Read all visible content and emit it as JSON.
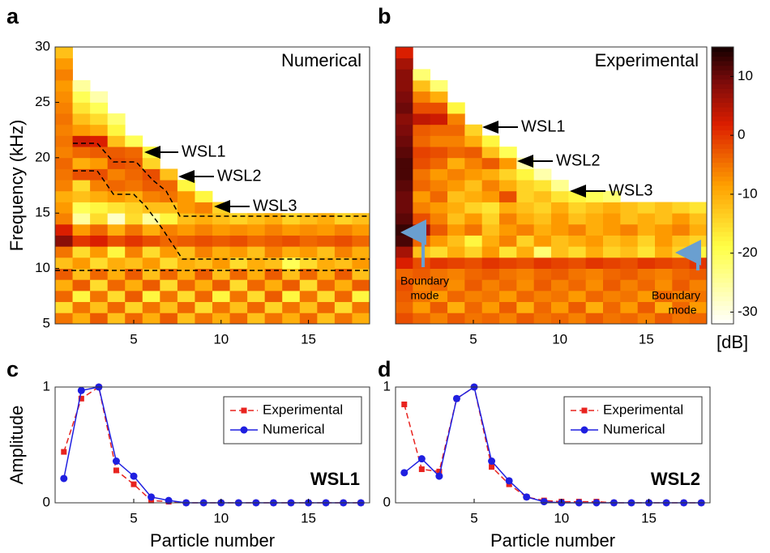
{
  "chart_data": [
    {
      "type": "heatmap",
      "panel_label": "a",
      "title": "Numerical",
      "ylabel": "Frequency (kHz)",
      "annotations": [
        "WSL1",
        "WSL2",
        "WSL3"
      ],
      "x": [
        1,
        2,
        3,
        4,
        5,
        6,
        7,
        8,
        9,
        10,
        11,
        12,
        13,
        14,
        15,
        16,
        17,
        18
      ],
      "ybins": [
        5,
        6,
        7,
        8,
        9,
        10,
        11,
        12,
        13,
        14,
        15,
        16,
        17,
        18,
        19,
        20,
        21,
        22,
        23,
        24,
        25,
        26,
        27,
        28,
        29,
        30
      ],
      "xlim": [
        0.5,
        18.5
      ],
      "xticks": [
        5,
        10,
        15
      ],
      "ylim": [
        5,
        30
      ],
      "yticks": [
        5,
        10,
        15,
        20,
        25,
        30
      ],
      "values": [
        [
          -5,
          -10,
          -3,
          -12,
          -4,
          -10,
          -3,
          -12,
          -5,
          -10,
          -4,
          -12,
          -5,
          -10,
          -4,
          -12,
          -5,
          -10
        ],
        [
          -15,
          -5,
          -12,
          -4,
          -14,
          -5,
          -12,
          -4,
          -15,
          -5,
          -12,
          -4,
          -14,
          -5,
          -12,
          -4,
          -15,
          -5
        ],
        [
          -4,
          -18,
          -5,
          -15,
          -3,
          -18,
          -5,
          -15,
          -4,
          -18,
          -5,
          -15,
          -3,
          -18,
          -5,
          -15,
          -4,
          -18
        ],
        [
          -10,
          -3,
          -15,
          -4,
          -10,
          -3,
          -15,
          -4,
          -10,
          -3,
          -15,
          -4,
          -10,
          -3,
          -15,
          -4,
          -10,
          -3
        ],
        [
          -3,
          -12,
          -4,
          -10,
          -3,
          -12,
          -4,
          -10,
          -3,
          -12,
          -4,
          -10,
          -3,
          -12,
          -4,
          -10,
          -3,
          -12
        ],
        [
          -12,
          -8,
          -15,
          -10,
          -12,
          -8,
          -15,
          -10,
          -12,
          -8,
          -15,
          -10,
          -12,
          -20,
          -15,
          -10,
          -12,
          -8
        ],
        [
          -5,
          -15,
          -8,
          -18,
          -6,
          -15,
          -8,
          -12,
          -6,
          -10,
          -8,
          -12,
          -6,
          -10,
          -8,
          -12,
          -6,
          -10
        ],
        [
          8,
          0,
          2,
          -2,
          0,
          -2,
          -4,
          -3,
          -2,
          -3,
          -2,
          -4,
          -3,
          -2,
          -4,
          -3,
          -2,
          -4
        ],
        [
          2,
          -8,
          -4,
          -10,
          -5,
          -10,
          -6,
          -8,
          -6,
          -8,
          -7,
          -8,
          -6,
          -8,
          -7,
          -8,
          -6,
          -8
        ],
        [
          -6,
          -25,
          -15,
          -28,
          -15,
          -25,
          -18,
          -12,
          -10,
          -12,
          -14,
          -12,
          -10,
          -14,
          -12,
          -10,
          -14,
          -12
        ],
        [
          -8,
          -20,
          -18,
          -16,
          -14,
          -12,
          -12,
          -8,
          -6,
          -14,
          null,
          null,
          null,
          null,
          null,
          null,
          null,
          null
        ],
        [
          -10,
          -12,
          -10,
          -8,
          -10,
          -6,
          -5,
          -8,
          -18,
          null,
          null,
          null,
          null,
          null,
          null,
          null,
          null,
          null
        ],
        [
          -6,
          -15,
          -6,
          -4,
          -5,
          -3,
          -4,
          -18,
          null,
          null,
          null,
          null,
          null,
          null,
          null,
          null,
          null,
          null
        ],
        [
          -5,
          -2,
          -2,
          -6,
          -4,
          -2,
          -12,
          null,
          null,
          null,
          null,
          null,
          null,
          null,
          null,
          null,
          null,
          null
        ],
        [
          -4,
          -10,
          -8,
          -2,
          -3,
          -14,
          null,
          null,
          null,
          null,
          null,
          null,
          null,
          null,
          null,
          null,
          null,
          null
        ],
        [
          -6,
          -4,
          -3,
          -3,
          -4,
          -18,
          null,
          null,
          null,
          null,
          null,
          null,
          null,
          null,
          null,
          null,
          null,
          null
        ],
        [
          -5,
          3,
          2,
          -12,
          -20,
          null,
          null,
          null,
          null,
          null,
          null,
          null,
          null,
          null,
          null,
          null,
          null,
          null
        ],
        [
          -6,
          -8,
          -10,
          -18,
          null,
          null,
          null,
          null,
          null,
          null,
          null,
          null,
          null,
          null,
          null,
          null,
          null,
          null
        ],
        [
          -5,
          -12,
          -15,
          -22,
          null,
          null,
          null,
          null,
          null,
          null,
          null,
          null,
          null,
          null,
          null,
          null,
          null,
          null
        ],
        [
          -6,
          -16,
          -20,
          null,
          null,
          null,
          null,
          null,
          null,
          null,
          null,
          null,
          null,
          null,
          null,
          null,
          null,
          null
        ],
        [
          -7,
          -20,
          -26,
          null,
          null,
          null,
          null,
          null,
          null,
          null,
          null,
          null,
          null,
          null,
          null,
          null,
          null,
          null
        ],
        [
          -8,
          -25,
          null,
          null,
          null,
          null,
          null,
          null,
          null,
          null,
          null,
          null,
          null,
          null,
          null,
          null,
          null,
          null
        ],
        [
          -6,
          null,
          null,
          null,
          null,
          null,
          null,
          null,
          null,
          null,
          null,
          null,
          null,
          null,
          null,
          null,
          null,
          null
        ],
        [
          -8,
          null,
          null,
          null,
          null,
          null,
          null,
          null,
          null,
          null,
          null,
          null,
          null,
          null,
          null,
          null,
          null,
          null
        ],
        [
          -12,
          null,
          null,
          null,
          null,
          null,
          null,
          null,
          null,
          null,
          null,
          null,
          null,
          null,
          null,
          null,
          null,
          null
        ]
      ]
    },
    {
      "type": "heatmap",
      "panel_label": "b",
      "title": "Experimental",
      "annotations": [
        "WSL1",
        "WSL2",
        "WSL3",
        "Boundary",
        "mode",
        "Boundary",
        "mode"
      ],
      "colorbar": {
        "label": "[dB]",
        "clim": [
          -32,
          15
        ],
        "ticks": [
          10,
          0,
          -10,
          -20,
          -30
        ]
      },
      "x": [
        1,
        2,
        3,
        4,
        5,
        6,
        7,
        8,
        9,
        10,
        11,
        12,
        13,
        14,
        15,
        16,
        17,
        18
      ],
      "ybins": [
        5,
        6,
        7,
        8,
        9,
        10,
        11,
        12,
        13,
        14,
        15,
        16,
        17,
        18,
        19,
        20,
        21,
        22,
        23,
        24,
        25,
        26,
        27,
        28,
        29,
        30
      ],
      "xlim": [
        0.5,
        18.5
      ],
      "xticks": [
        5,
        10,
        15
      ],
      "ylim": [
        5,
        30
      ],
      "values": [
        [
          -2,
          -4,
          -6,
          -3,
          -5,
          -4,
          -6,
          -3,
          -5,
          -4,
          -6,
          -3,
          -5,
          -4,
          -6,
          -3,
          -5,
          -4
        ],
        [
          -4,
          -8,
          -3,
          -10,
          -4,
          -8,
          -3,
          -10,
          -4,
          -8,
          -3,
          -10,
          -4,
          -8,
          -3,
          -10,
          -4,
          -8
        ],
        [
          -3,
          -5,
          -8,
          -4,
          -6,
          -5,
          -8,
          -4,
          -6,
          -5,
          -8,
          -4,
          -6,
          -5,
          -8,
          -4,
          -6,
          -5
        ],
        [
          -2,
          -6,
          -4,
          -7,
          -3,
          -6,
          -4,
          -7,
          -3,
          -6,
          -4,
          -7,
          -3,
          -6,
          -4,
          -7,
          -3,
          -6
        ],
        [
          -4,
          -3,
          -5,
          -6,
          -4,
          -3,
          -5,
          -6,
          -4,
          -3,
          -5,
          -6,
          -4,
          -3,
          -5,
          -6,
          -4,
          -3
        ],
        [
          2,
          -2,
          0,
          -1,
          -2,
          0,
          -1,
          -2,
          0,
          -1,
          -2,
          0,
          -1,
          -2,
          0,
          -1,
          -2,
          0
        ],
        [
          6,
          -12,
          -15,
          -10,
          -14,
          -8,
          -16,
          -10,
          -22,
          -12,
          -15,
          -10,
          -14,
          -12,
          -16,
          -10,
          -14,
          -18
        ],
        [
          12,
          -4,
          -8,
          -12,
          -18,
          -10,
          -6,
          -14,
          -8,
          -12,
          -10,
          -8,
          -12,
          -10,
          -14,
          -8,
          -12,
          -14
        ],
        [
          13,
          6,
          -3,
          -8,
          -5,
          -12,
          -8,
          -6,
          -10,
          -8,
          -6,
          -10,
          -8,
          -6,
          -10,
          -8,
          -6,
          -10
        ],
        [
          11,
          -2,
          -6,
          -12,
          -8,
          -14,
          -6,
          -10,
          -12,
          -8,
          -12,
          -10,
          -8,
          -12,
          -10,
          -12,
          -8,
          -12
        ],
        [
          10,
          -6,
          -8,
          -10,
          -14,
          -16,
          -10,
          -12,
          -14,
          -10,
          -14,
          -12,
          -10,
          -12,
          -14,
          -12,
          -14,
          -16
        ],
        [
          10,
          -8,
          -4,
          -12,
          -10,
          -8,
          -2,
          -14,
          -12,
          -16,
          -18,
          -20,
          -22,
          null,
          null,
          null,
          null,
          null
        ],
        [
          11,
          -4,
          -6,
          -8,
          -12,
          -6,
          -10,
          -14,
          -16,
          -24,
          null,
          null,
          null,
          null,
          null,
          null,
          null,
          null
        ],
        [
          12,
          -5,
          -8,
          -6,
          -8,
          -10,
          -14,
          -18,
          -26,
          null,
          null,
          null,
          null,
          null,
          null,
          null,
          null,
          null
        ],
        [
          12,
          -2,
          -4,
          -10,
          -6,
          -3,
          -8,
          -26,
          null,
          null,
          null,
          null,
          null,
          null,
          null,
          null,
          null,
          null
        ],
        [
          11,
          -1,
          -2,
          -4,
          -3,
          -12,
          -20,
          null,
          null,
          null,
          null,
          null,
          null,
          null,
          null,
          null,
          null,
          null
        ],
        [
          10,
          -4,
          -6,
          -6,
          -10,
          -18,
          null,
          null,
          null,
          null,
          null,
          null,
          null,
          null,
          null,
          null,
          null,
          null
        ],
        [
          9,
          -3,
          -4,
          -4,
          -14,
          null,
          null,
          null,
          null,
          null,
          null,
          null,
          null,
          null,
          null,
          null,
          null,
          null
        ],
        [
          8,
          4,
          3,
          -6,
          null,
          null,
          null,
          null,
          null,
          null,
          null,
          null,
          null,
          null,
          null,
          null,
          null,
          null
        ],
        [
          10,
          -2,
          -2,
          -18,
          null,
          null,
          null,
          null,
          null,
          null,
          null,
          null,
          null,
          null,
          null,
          null,
          null,
          null
        ],
        [
          9,
          -6,
          -10,
          null,
          null,
          null,
          null,
          null,
          null,
          null,
          null,
          null,
          null,
          null,
          null,
          null,
          null,
          null
        ],
        [
          8,
          -12,
          -22,
          null,
          null,
          null,
          null,
          null,
          null,
          null,
          null,
          null,
          null,
          null,
          null,
          null,
          null,
          null
        ],
        [
          8,
          -22,
          null,
          null,
          null,
          null,
          null,
          null,
          null,
          null,
          null,
          null,
          null,
          null,
          null,
          null,
          null,
          null
        ],
        [
          6,
          null,
          null,
          null,
          null,
          null,
          null,
          null,
          null,
          null,
          null,
          null,
          null,
          null,
          null,
          null,
          null,
          null
        ],
        [
          2,
          null,
          null,
          null,
          null,
          null,
          null,
          null,
          null,
          null,
          null,
          null,
          null,
          null,
          null,
          null,
          null,
          null
        ]
      ]
    },
    {
      "type": "line",
      "panel_label": "c",
      "ylabel": "Amplitude",
      "xlabel": "Particle number",
      "annotation": "WSL1",
      "legend": "upper right",
      "x": [
        1,
        2,
        3,
        4,
        5,
        6,
        7,
        8,
        9,
        10,
        11,
        12,
        13,
        14,
        15,
        16,
        17,
        18
      ],
      "xlim": [
        0.5,
        18.5
      ],
      "xticks": [
        5,
        10,
        15
      ],
      "ylim": [
        0,
        1
      ],
      "yticks": [
        0,
        1
      ],
      "series": [
        {
          "name": "Experimental",
          "color": "#e8231f",
          "dash": true,
          "marker": "square",
          "values": [
            0.44,
            0.9,
            1,
            0.28,
            0.16,
            0.02,
            0.01,
            0,
            0,
            0,
            0,
            0,
            0,
            0,
            0,
            0,
            0,
            0
          ]
        },
        {
          "name": "Numerical",
          "color": "#1f1fe0",
          "dash": false,
          "marker": "circle",
          "values": [
            0.21,
            0.97,
            1,
            0.36,
            0.23,
            0.05,
            0.02,
            0,
            0,
            0,
            0,
            0,
            0,
            0,
            0,
            0,
            0,
            0
          ]
        }
      ]
    },
    {
      "type": "line",
      "panel_label": "d",
      "xlabel": "Particle number",
      "annotation": "WSL2",
      "legend": "upper right",
      "x": [
        1,
        2,
        3,
        4,
        5,
        6,
        7,
        8,
        9,
        10,
        11,
        12,
        13,
        14,
        15,
        16,
        17,
        18
      ],
      "xlim": [
        0.5,
        18.5
      ],
      "xticks": [
        5,
        10,
        15
      ],
      "ylim": [
        0,
        1
      ],
      "yticks": [
        0,
        1
      ],
      "series": [
        {
          "name": "Experimental",
          "color": "#e8231f",
          "dash": true,
          "marker": "square",
          "values": [
            0.85,
            0.29,
            0.27,
            0.9,
            1,
            0.31,
            0.16,
            0.05,
            0.02,
            0.01,
            0.01,
            0.01,
            0,
            0,
            0,
            0,
            0,
            0
          ]
        },
        {
          "name": "Numerical",
          "color": "#1f1fe0",
          "dash": false,
          "marker": "circle",
          "values": [
            0.26,
            0.38,
            0.23,
            0.9,
            1,
            0.36,
            0.19,
            0.05,
            0.01,
            0,
            0,
            0,
            0,
            0,
            0,
            0,
            0,
            0
          ]
        }
      ]
    }
  ]
}
